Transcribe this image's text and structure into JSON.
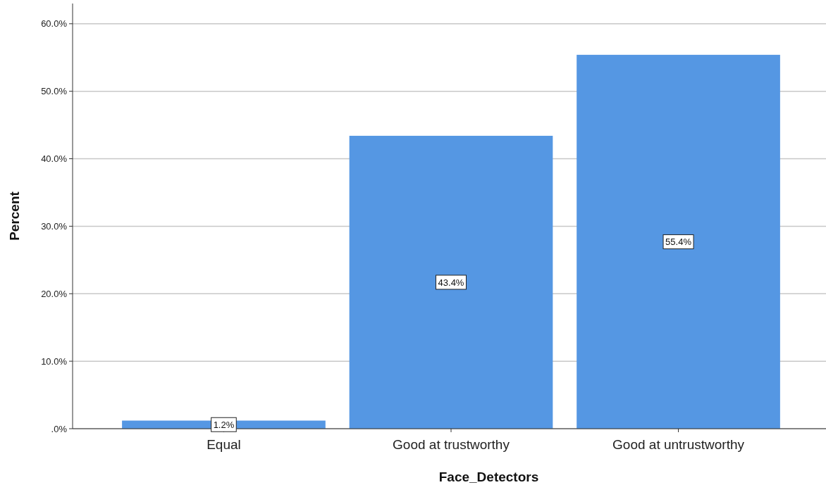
{
  "chart_data": {
    "type": "bar",
    "xlabel": "Face_Detectors",
    "ylabel": "Percent",
    "categories": [
      "Equal",
      "Good at trustworthy",
      "Good at untrustworthy"
    ],
    "values": [
      1.2,
      43.4,
      55.4
    ],
    "color": "#5597e3",
    "value_labels": [
      "1.2%",
      "43.4%",
      "55.4%"
    ],
    "ylim": [
      0,
      63
    ],
    "yticks": [
      {
        "value": 0,
        "label": ".0%"
      },
      {
        "value": 10,
        "label": "10.0%"
      },
      {
        "value": 20,
        "label": "20.0%"
      },
      {
        "value": 30,
        "label": "30.0%"
      },
      {
        "value": 40,
        "label": "40.0%"
      },
      {
        "value": 50,
        "label": "50.0%"
      },
      {
        "value": 60,
        "label": "60.0%"
      }
    ],
    "grid": "y"
  }
}
